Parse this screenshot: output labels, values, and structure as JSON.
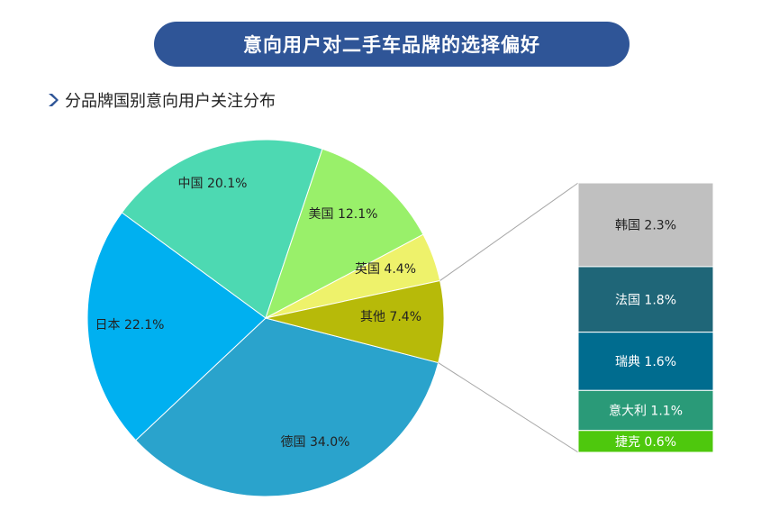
{
  "title": "意向用户对二手车品牌的选择偏好",
  "subtitle": "分品牌国别意向用户关注分布",
  "icons": {
    "subtitle_marker": "chevron-right-icon"
  },
  "colors": {
    "title_bg": "#2f5597",
    "chevron": "#2f5597"
  },
  "chart_data": [
    {
      "type": "pie",
      "start": "德国 (bottom, clockwise from right)",
      "slices": [
        {
          "label": "德国",
          "value": 34.0,
          "text": "德国 34.0%",
          "color": "#2aa3cc"
        },
        {
          "label": "日本",
          "value": 22.1,
          "text": "日本 22.1%",
          "color": "#00b0f0"
        },
        {
          "label": "中国",
          "value": 20.1,
          "text": "中国 20.1%",
          "color": "#4dd9b2"
        },
        {
          "label": "美国",
          "value": 12.1,
          "text": "美国 12.1%",
          "color": "#99f06a"
        },
        {
          "label": "英国",
          "value": 4.4,
          "text": "英国 4.4%",
          "color": "#eef26b"
        },
        {
          "label": "其他",
          "value": 7.4,
          "text": "其他 7.4%",
          "color": "#b7ba09"
        }
      ]
    },
    {
      "type": "bar",
      "stacked": true,
      "breakdown_of": "其他",
      "segments": [
        {
          "label": "韩国",
          "value": 2.3,
          "text": "韩国 2.3%",
          "color": "#c0c0c0"
        },
        {
          "label": "法国",
          "value": 1.8,
          "text": "法国 1.8%",
          "color": "#1f6678"
        },
        {
          "label": "瑞典",
          "value": 1.6,
          "text": "瑞典 1.6%",
          "color": "#006c8f"
        },
        {
          "label": "意大利",
          "value": 1.1,
          "text": "意大利 1.1%",
          "color": "#2a9a78"
        },
        {
          "label": "捷克",
          "value": 0.6,
          "text": "捷克 0.6%",
          "color": "#4ec80d"
        }
      ]
    }
  ]
}
